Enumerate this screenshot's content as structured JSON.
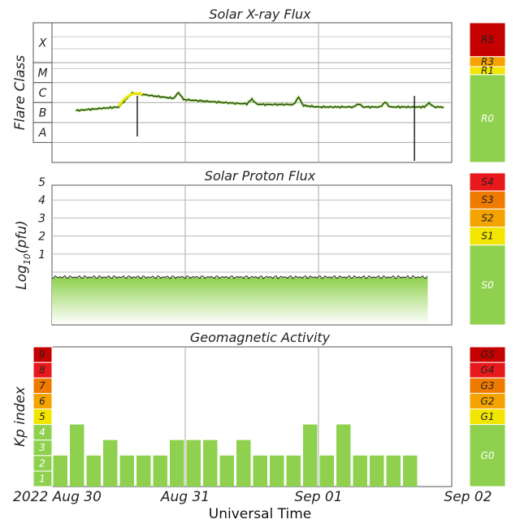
{
  "xlabel": "Universal Time",
  "x_ticks": [
    "2022 Aug 30",
    "Aug 31",
    "Sep 01",
    "Sep 02"
  ],
  "colors": {
    "green": "#8fd14f",
    "yellow": "#f2e600",
    "orange": "#f4a300",
    "dark_orange": "#ef7a00",
    "red": "#e8191c",
    "dark_red": "#c40000"
  },
  "chart_data": [
    {
      "type": "line",
      "title": "Solar X-ray Flux",
      "ylabel": "Flare Class",
      "y_scale": "log",
      "ylim": [
        "1e-9",
        "1e-2"
      ],
      "class_labels": [
        "X",
        "M",
        "C",
        "B",
        "A"
      ],
      "scale_labels": [
        "R5",
        "R3",
        "R1",
        "R0"
      ],
      "x_days": [
        0.18,
        0.5,
        0.6,
        0.8,
        1.0,
        1.2,
        1.4,
        1.6,
        1.8,
        2.0,
        2.2,
        2.4,
        2.6,
        2.94
      ],
      "values_watts_m2": [
        "4e-7",
        "6e-7",
        "3e-6",
        "2e-6",
        "1.4e-6",
        "1.1e-6",
        "9e-7",
        "8e-7",
        "8e-7",
        "6e-7",
        "6e-7",
        "6e-7",
        "6e-7",
        "6e-7"
      ],
      "notes": [
        "dropout near Aug 30 ~15 UT",
        "dropout near Sep 01 ~08 UT"
      ]
    },
    {
      "type": "area",
      "title": "Solar Proton Flux",
      "ylabel": "Log10(pfu)",
      "ylabel_parts": {
        "pre": "Log",
        "sub": "10",
        "post": "(pfu)"
      },
      "y_ticks": [
        "1",
        "2",
        "3",
        "4",
        "5"
      ],
      "ylim": [
        -1.5,
        6
      ],
      "scale_labels": [
        "S5",
        "S4",
        "S3",
        "S2",
        "S1",
        "S0"
      ],
      "x_days": [
        0.0,
        2.82
      ],
      "values_log_pfu": [
        -0.3,
        -0.3
      ]
    },
    {
      "type": "bar",
      "title": "Geomagnetic Activity",
      "ylabel": "Kp index",
      "y_ticks": [
        "1",
        "2",
        "3",
        "4",
        "5",
        "6",
        "7",
        "8",
        "9"
      ],
      "ylim": [
        0,
        9
      ],
      "scale_labels": [
        "G5",
        "G4",
        "G3",
        "G2",
        "G1",
        "G0"
      ],
      "interval_hours": 3,
      "values": [
        2,
        4,
        2,
        3,
        2,
        2,
        2,
        3,
        3,
        3,
        2,
        3,
        2,
        2,
        2,
        4,
        2,
        4,
        2,
        2,
        2,
        2
      ]
    }
  ]
}
